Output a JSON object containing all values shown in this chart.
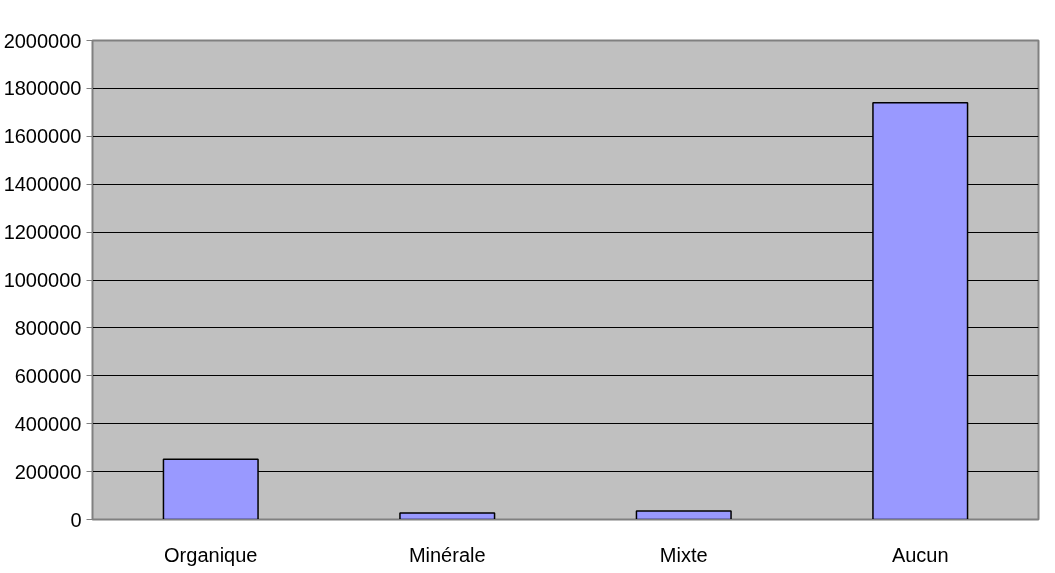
{
  "chart_data": {
    "type": "bar",
    "categories": [
      "Organique",
      "Minérale",
      "Mixte",
      "Aucun"
    ],
    "values": [
      252000,
      27000,
      36000,
      1740000
    ],
    "color": "#9999ff",
    "ylim": [
      0,
      2000000
    ],
    "yticks": [
      0,
      200000,
      400000,
      600000,
      800000,
      1000000,
      1200000,
      1400000,
      1600000,
      1800000,
      2000000
    ],
    "grid": "y"
  }
}
